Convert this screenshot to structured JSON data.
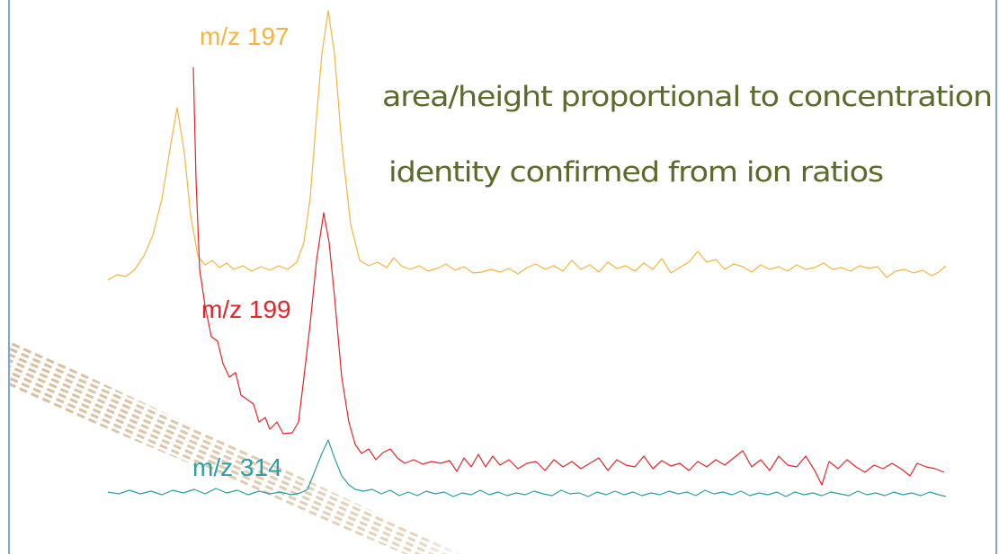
{
  "traces": [
    {
      "label": "m/z 197"
    },
    {
      "label": "m/z 199"
    },
    {
      "label": "m/z 314"
    }
  ],
  "notes": [
    "area/height proportional to concentration",
    "identity confirmed from ion ratios"
  ]
}
